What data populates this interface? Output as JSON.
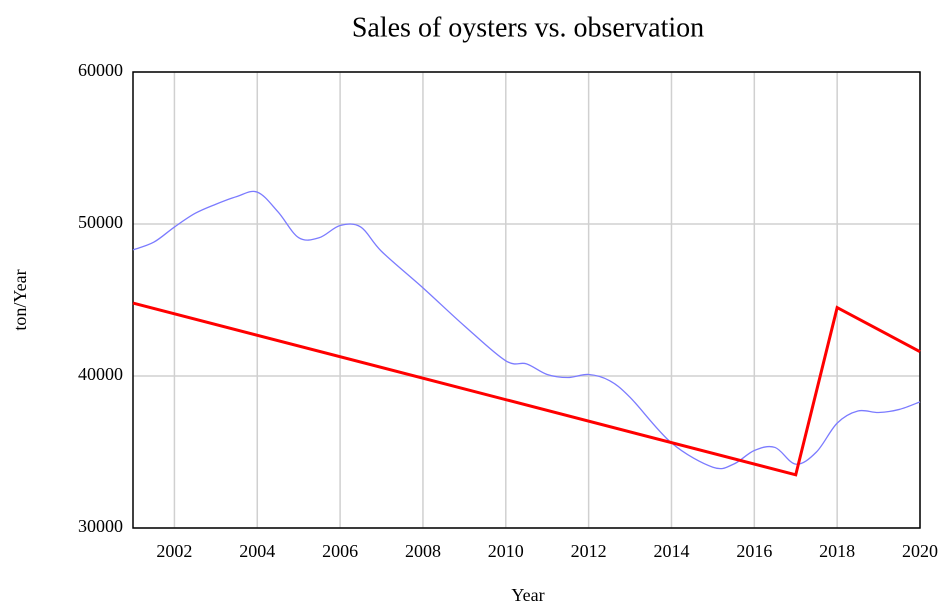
{
  "chart_data": {
    "type": "line",
    "title": "Sales of oysters vs. observation",
    "xlabel": "Year",
    "ylabel": "ton/Year",
    "series": [
      {
        "color": "#7b7bff",
        "width": 1.3,
        "x": [
          2001,
          2001.5,
          2002,
          2002.5,
          2003,
          2003.5,
          2004,
          2004.5,
          2005,
          2005.5,
          2006,
          2006.5,
          2007,
          2008,
          2009,
          2010,
          2010.5,
          2011,
          2011.5,
          2012,
          2012.5,
          2013,
          2014,
          2015,
          2015.5,
          2016,
          2016.5,
          2017,
          2017.5,
          2018,
          2018.5,
          2019,
          2019.5,
          2020
        ],
        "values": [
          48300,
          48800,
          49800,
          50700,
          51300,
          51800,
          52100,
          50800,
          49100,
          49100,
          49900,
          49800,
          48200,
          45800,
          43300,
          41000,
          40800,
          40100,
          39900,
          40100,
          39700,
          38600,
          35600,
          34000,
          34200,
          35100,
          35300,
          34200,
          35000,
          36900,
          37700,
          37600,
          37800,
          38300
        ]
      },
      {
        "color": "#ff0000",
        "width": 3,
        "x": [
          2001,
          2017,
          2018,
          2020
        ],
        "values": [
          44800,
          33500,
          44500,
          41600
        ]
      }
    ],
    "xlim": [
      2001,
      2020
    ],
    "xticks": [
      2002,
      2004,
      2006,
      2008,
      2010,
      2012,
      2014,
      2016,
      2018,
      2020
    ],
    "ylim": [
      30000,
      60000
    ],
    "yticks": [
      30000,
      40000,
      50000,
      60000
    ],
    "grid": true
  }
}
